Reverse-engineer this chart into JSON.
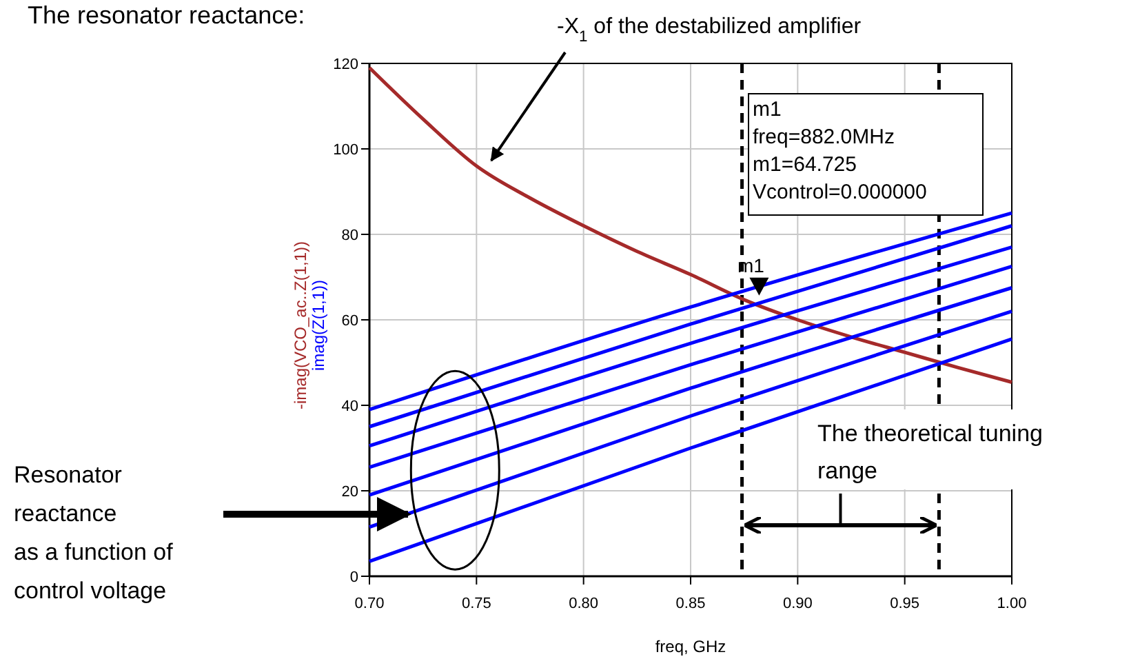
{
  "chart_data": {
    "type": "line",
    "title": "The resonator reactance:",
    "xlabel": "freq, GHz",
    "ylabel": "-imag(VCO_ac..Z(1,1))",
    "y2label": "imag(Z(1,1))",
    "x": [
      0.7,
      0.725,
      0.75,
      0.775,
      0.8,
      0.825,
      0.85,
      0.875,
      0.9,
      0.925,
      0.95,
      0.975,
      1.0
    ],
    "series": [
      {
        "color": "#a52a2a",
        "values": [
          119,
          107,
          96,
          88.5,
          82,
          76,
          70.6,
          64.7,
          60,
          56,
          52.4,
          48.8,
          45.4
        ]
      },
      {
        "color": "#0000ff",
        "x": [
          0.7,
          0.85,
          1.0
        ],
        "values": [
          39,
          63,
          85
        ]
      },
      {
        "color": "#0000ff",
        "x": [
          0.7,
          0.85,
          1.0
        ],
        "values": [
          35,
          59,
          82
        ]
      },
      {
        "color": "#0000ff",
        "x": [
          0.7,
          0.85,
          1.0
        ],
        "values": [
          30.5,
          54.5,
          77
        ]
      },
      {
        "color": "#0000ff",
        "x": [
          0.7,
          0.85,
          1.0
        ],
        "values": [
          25.5,
          49.5,
          72.5
        ]
      },
      {
        "color": "#0000ff",
        "x": [
          0.7,
          0.85,
          1.0
        ],
        "values": [
          19,
          44,
          67.5
        ]
      },
      {
        "color": "#0000ff",
        "x": [
          0.7,
          0.85,
          1.0
        ],
        "values": [
          11.5,
          37.5,
          62
        ]
      },
      {
        "color": "#0000ff",
        "x": [
          0.7,
          0.85,
          1.0
        ],
        "values": [
          3.5,
          30,
          55.5
        ]
      }
    ],
    "xlim": [
      0.7,
      1.0
    ],
    "ylim": [
      0,
      120
    ],
    "xticks": [
      {
        "value": 0.7,
        "label": "0.70"
      },
      {
        "value": 0.75,
        "label": "0.75"
      },
      {
        "value": 0.8,
        "label": "0.80"
      },
      {
        "value": 0.85,
        "label": "0.85"
      },
      {
        "value": 0.9,
        "label": "0.90"
      },
      {
        "value": 0.95,
        "label": "0.95"
      },
      {
        "value": 1.0,
        "label": "1.00"
      }
    ],
    "yticks": [
      0,
      20,
      40,
      60,
      80,
      100,
      120
    ],
    "grid": true,
    "marker": "none",
    "line_style": "solid",
    "ref_lines": [
      {
        "axis": "x",
        "value": 0.874,
        "color": "#000000",
        "line_style": "dashed"
      },
      {
        "axis": "x",
        "value": 0.966,
        "color": "#000000",
        "line_style": "dashed"
      }
    ],
    "annotations": [
      {
        "text": "-X$_{1}$ of the destabilized amplifier",
        "x": 0.755,
        "y": 96
      },
      {
        "text": "m1",
        "x": 0.882,
        "y": 64.725
      },
      "m1\nfreq=882.0MHz\nm1=64.725\nVcontrol=0.000000",
      "The theoretical tuning range",
      "Resonator reactance as a function of control voltage"
    ]
  }
}
